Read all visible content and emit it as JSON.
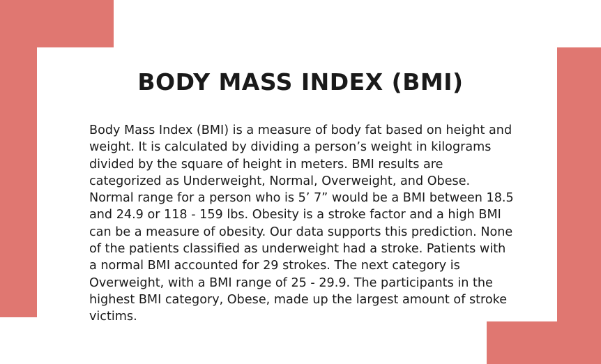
{
  "colors": {
    "accent": "#e07771",
    "background": "#ffffff",
    "text": "#1a1a1a"
  },
  "slide": {
    "title": "BODY MASS INDEX (BMI)",
    "body_lines": [
      "Body Mass Index (BMI) is a measure of body fat based on height and",
      "weight. It is calculated by dividing a person’s weight in kilograms",
      "divided by the square of height in meters.  BMI results are",
      "categorized as Underweight, Normal, Overweight, and Obese.",
      "Normal range for a person who is 5’ 7” would be a BMI between 18.5",
      "and 24.9 or 118 - 159 lbs.  Obesity is a stroke factor and a high BMI",
      "can be a measure of obesity.  Our data supports this prediction. None",
      "of the patients classified as underweight had a stroke.  Patients with",
      "a normal BMI accounted for 29 strokes.  The next category is",
      "Overweight, with a BMI range of 25 - 29.9.  The participants in the",
      "highest BMI category, Obese, made up the largest amount of stroke",
      "victims."
    ]
  }
}
